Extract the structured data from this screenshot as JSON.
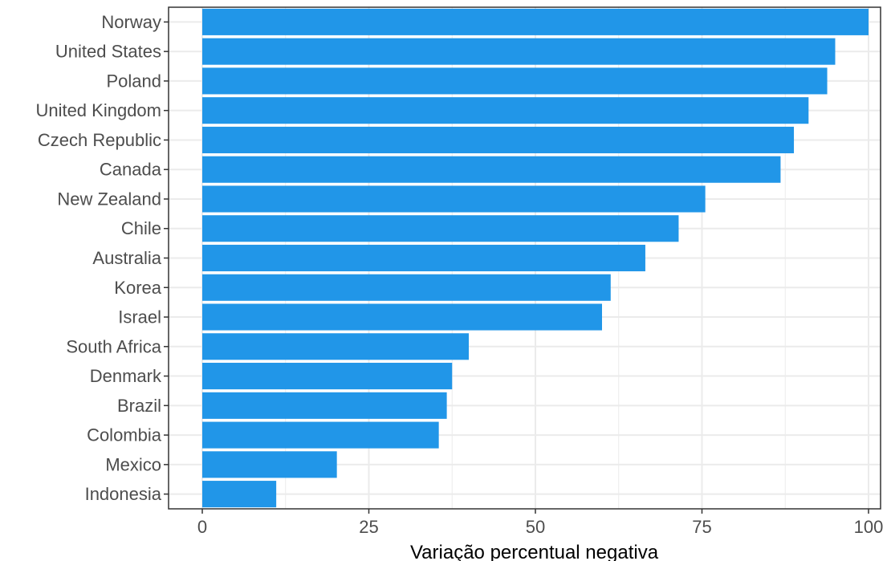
{
  "chart_data": {
    "type": "bar",
    "orientation": "horizontal",
    "categories": [
      "Norway",
      "United States",
      "Poland",
      "United Kingdom",
      "Czech Republic",
      "Canada",
      "New Zealand",
      "Chile",
      "Australia",
      "Korea",
      "Israel",
      "South Africa",
      "Denmark",
      "Brazil",
      "Colombia",
      "Mexico",
      "Indonesia"
    ],
    "values": [
      100,
      95,
      93.8,
      91,
      88.8,
      86.8,
      75.5,
      71.5,
      66.5,
      61.3,
      60,
      40,
      37.5,
      36.7,
      35.5,
      20.2,
      11.1
    ],
    "xlabel": "Variação percentual negativa",
    "ylabel": "",
    "xlim": [
      0,
      100
    ],
    "xticks": [
      "0",
      "25",
      "50",
      "75",
      "100"
    ],
    "xtick_values": [
      0,
      25,
      50,
      75,
      100
    ],
    "grid": true,
    "bar_color": "#2196E8",
    "grid_color": "#ebebeb",
    "panel_border_color": "#333333",
    "tick_text_color": "#4d4d4d"
  }
}
